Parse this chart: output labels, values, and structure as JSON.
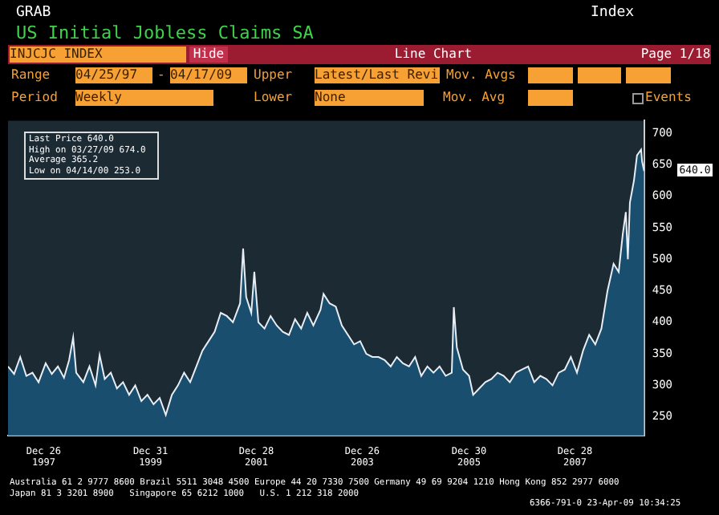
{
  "chart_data": {
    "type": "area",
    "title": "US Initial Jobless Claims SA",
    "x": [
      "1997-04-25",
      "1997-06-06",
      "1997-07-18",
      "1997-08-29",
      "1997-10-10",
      "1997-11-21",
      "1998-01-09",
      "1998-02-20",
      "1998-04-03",
      "1998-05-15",
      "1998-06-19",
      "1998-07-17",
      "1998-08-07",
      "1998-09-25",
      "1998-11-06",
      "1998-12-18",
      "1999-01-15",
      "1999-02-19",
      "1999-04-02",
      "1999-05-14",
      "1999-06-25",
      "1999-08-06",
      "1999-09-17",
      "1999-10-29",
      "1999-12-10",
      "2000-01-21",
      "2000-03-03",
      "2000-04-14",
      "2000-05-26",
      "2000-07-07",
      "2000-08-18",
      "2000-09-29",
      "2000-11-10",
      "2000-12-22",
      "2001-02-02",
      "2001-03-16",
      "2001-04-27",
      "2001-06-08",
      "2001-07-20",
      "2001-09-07",
      "2001-09-28",
      "2001-10-19",
      "2001-11-23",
      "2001-12-14",
      "2002-01-11",
      "2002-02-22",
      "2002-04-05",
      "2002-05-17",
      "2002-06-28",
      "2002-08-09",
      "2002-09-20",
      "2002-11-01",
      "2002-12-13",
      "2003-01-24",
      "2003-03-14",
      "2003-04-04",
      "2003-05-16",
      "2003-06-27",
      "2003-08-08",
      "2003-09-19",
      "2003-10-31",
      "2003-12-12",
      "2004-01-23",
      "2004-03-05",
      "2004-04-16",
      "2004-05-28",
      "2004-07-09",
      "2004-08-20",
      "2004-10-01",
      "2004-11-12",
      "2004-12-24",
      "2005-02-04",
      "2005-03-18",
      "2005-04-29",
      "2005-06-10",
      "2005-07-22",
      "2005-09-02",
      "2005-09-16",
      "2005-10-07",
      "2005-11-18",
      "2005-12-30",
      "2006-01-27",
      "2006-03-10",
      "2006-04-21",
      "2006-06-02",
      "2006-07-14",
      "2006-08-25",
      "2006-10-06",
      "2006-11-17",
      "2006-12-29",
      "2007-02-09",
      "2007-03-23",
      "2007-05-04",
      "2007-06-15",
      "2007-07-27",
      "2007-09-07",
      "2007-10-19",
      "2007-11-30",
      "2008-01-11",
      "2008-02-22",
      "2008-04-04",
      "2008-05-16",
      "2008-06-27",
      "2008-08-08",
      "2008-09-19",
      "2008-10-24",
      "2008-11-21",
      "2008-12-12",
      "2008-12-26",
      "2009-01-09",
      "2009-02-06",
      "2009-02-27",
      "2009-03-27",
      "2009-04-03",
      "2009-04-17"
    ],
    "series": [
      {
        "color": "#1a5478",
        "values": [
          330,
          318,
          345,
          315,
          320,
          305,
          335,
          318,
          330,
          312,
          340,
          376,
          320,
          305,
          330,
          300,
          348,
          310,
          320,
          295,
          305,
          285,
          300,
          275,
          285,
          270,
          280,
          253,
          285,
          300,
          320,
          305,
          330,
          355,
          370,
          385,
          415,
          410,
          400,
          430,
          517,
          440,
          415,
          480,
          400,
          390,
          410,
          395,
          385,
          380,
          405,
          390,
          415,
          395,
          420,
          445,
          430,
          425,
          395,
          380,
          365,
          370,
          350,
          345,
          345,
          340,
          330,
          345,
          335,
          330,
          345,
          315,
          330,
          320,
          330,
          315,
          320,
          424,
          360,
          325,
          315,
          285,
          295,
          305,
          310,
          320,
          315,
          305,
          320,
          325,
          330,
          305,
          315,
          310,
          300,
          320,
          325,
          345,
          320,
          355,
          380,
          365,
          390,
          450,
          493,
          480,
          540,
          575,
          500,
          590,
          625,
          665,
          674,
          655,
          640
        ]
      }
    ],
    "xlim": [
      "1997-04-25",
      "2009-04-17"
    ],
    "xticks": [
      {
        "value": "1997-12-26",
        "label": "Dec 26\n1997"
      },
      {
        "value": "1999-12-31",
        "label": "Dec 31\n1999"
      },
      {
        "value": "2001-12-28",
        "label": "Dec 28\n2001"
      },
      {
        "value": "2003-12-26",
        "label": "Dec 26\n2003"
      },
      {
        "value": "2005-12-30",
        "label": "Dec 30\n2005"
      },
      {
        "value": "2007-12-28",
        "label": "Dec 28\n2007"
      }
    ],
    "ylim": [
      220,
      720
    ],
    "yticks": [
      250,
      300,
      350,
      400,
      450,
      500,
      550,
      600,
      650,
      700
    ],
    "annotations": [
      "GRAB",
      "Index",
      "INJCJC INDEX",
      "Hide",
      "Line Chart",
      "Page 1/18",
      "Range",
      "04/25/97",
      "-",
      "04/17/09",
      "Upper",
      "Latest/Last Revi",
      "Mov. Avgs",
      "Period",
      "Weekly",
      "Lower",
      "None",
      "Mov. Avg",
      "Events",
      "Last Price 640.0",
      "High on 03/27/09 674.0",
      "Average 365.2",
      "Low on 04/14/00 253.0",
      "Australia 61 2 9777 8600 Brazil 5511 3048 4500 Europe 44 20 7330 7500 Germany 49 69 9204 1210 Hong Kong 852 2977 6000",
      "Japan 81 3 3201 8900   Singapore 65 6212 1000   U.S. 1 212 318 2000",
      "6366-791-0 23-Apr-09 10:34:25",
      "640.0"
    ]
  }
}
